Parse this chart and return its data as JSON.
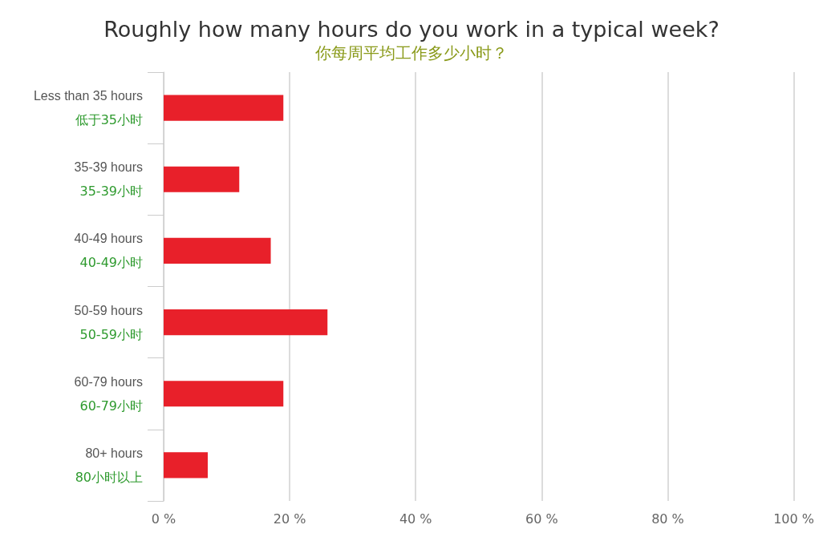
{
  "chart_data": {
    "type": "bar",
    "orientation": "horizontal",
    "title": "Roughly how many hours do you work in a typical week?",
    "subtitle": "你每周平均工作多少小时？",
    "categories": [
      "Less than 35 hours\n低于35小时",
      "35-39 hours\n35-39小时",
      "40-49 hours\n40-49小时",
      "50-59 hours\n50-59小时",
      "60-79 hours\n60-79小时",
      "80+ hours\n80小时以上"
    ],
    "values": [
      19,
      12,
      17,
      26,
      19,
      7
    ],
    "color": "#e8202a",
    "xlim": [
      0,
      100
    ],
    "xticks": [
      {
        "value": 0,
        "label": "0 %"
      },
      {
        "value": 20,
        "label": "20 %"
      },
      {
        "value": 40,
        "label": "40 %"
      },
      {
        "value": 60,
        "label": "60 %"
      },
      {
        "value": 80,
        "label": "80 %"
      },
      {
        "value": 100,
        "label": "100 %"
      }
    ],
    "grid": "x"
  }
}
